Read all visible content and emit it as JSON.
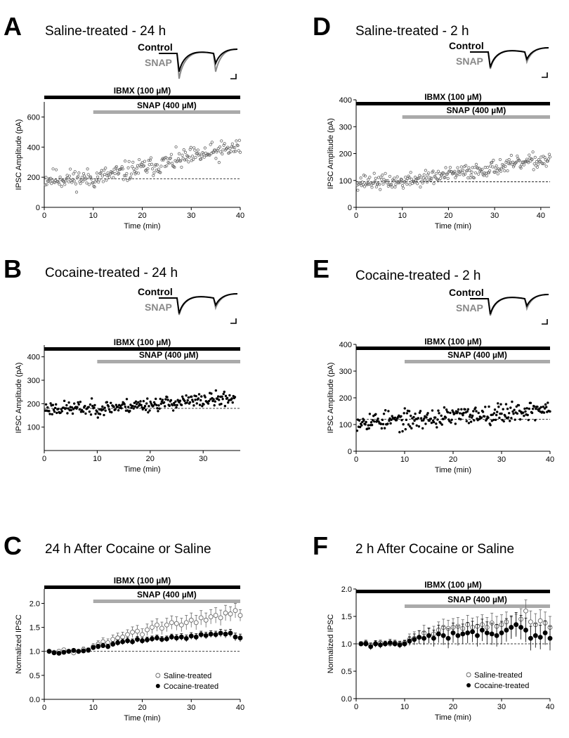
{
  "panels": [
    {
      "id": "A",
      "letter": "A",
      "title": "Saline-treated - 24 h",
      "kind": "scatter",
      "filled": false,
      "ibmx_label": "IBMX (100 µM)",
      "snap_label": "SNAP (400 µM)",
      "trace_labels": {
        "control": "Control",
        "snap": "SNAP"
      },
      "xlabel": "Time (min)",
      "ylabel": "IPSC Amplitude (pA)",
      "xlim": [
        0,
        40
      ],
      "ylim": [
        0,
        700
      ],
      "xticks": [
        0,
        10,
        20,
        30,
        40
      ],
      "yticks": [
        0,
        200,
        400,
        600
      ],
      "ibmx_range": [
        0,
        40
      ],
      "snap_range": [
        10,
        40
      ],
      "baseline": 190,
      "series": {
        "n": 250,
        "t_end": 40,
        "drug_at": 10,
        "y_before": 190,
        "y_end": 400,
        "spread": 75,
        "seed": 11
      }
    },
    {
      "id": "B",
      "letter": "B",
      "title": "Cocaine-treated - 24 h",
      "kind": "scatter",
      "filled": true,
      "ibmx_label": "IBMX (100 µM)",
      "snap_label": "SNAP (400 µM)",
      "trace_labels": {
        "control": "Control",
        "snap": "SNAP"
      },
      "xlabel": "Time (min)",
      "ylabel": "IPSC Amplitude (pA)",
      "xlim": [
        0,
        37
      ],
      "ylim": [
        0,
        450
      ],
      "xticks": [
        0,
        10,
        20,
        30
      ],
      "yticks": [
        100,
        200,
        300,
        400
      ],
      "ibmx_range": [
        0,
        37
      ],
      "snap_range": [
        10,
        37
      ],
      "baseline": 180,
      "series": {
        "n": 250,
        "t_end": 36,
        "drug_at": 10,
        "y_before": 180,
        "y_end": 225,
        "spread": 35,
        "seed": 23
      }
    },
    {
      "id": "C",
      "letter": "C",
      "title": "24 h After Cocaine or Saline",
      "kind": "errorbar",
      "ibmx_label": "IBMX (100 µM)",
      "snap_label": "SNAP (400 µM)",
      "xlabel": "Time (min)",
      "ylabel": "Normalized IPSC",
      "xlim": [
        0,
        40
      ],
      "ylim": [
        0,
        2.3
      ],
      "xticks": [
        0,
        10,
        20,
        30,
        40
      ],
      "yticks": [
        0.0,
        0.5,
        1.0,
        1.5,
        2.0
      ],
      "ibmx_range": [
        0,
        40
      ],
      "snap_range": [
        10,
        40
      ],
      "baseline": 1.0,
      "legend": {
        "position": "bottom-right"
      },
      "saline": {
        "name": "Saline-treated",
        "x": [
          1,
          2,
          3,
          4,
          5,
          6,
          7,
          8,
          9,
          10,
          11,
          12,
          13,
          14,
          15,
          16,
          17,
          18,
          19,
          20,
          21,
          22,
          23,
          24,
          25,
          26,
          27,
          28,
          29,
          30,
          31,
          32,
          33,
          34,
          35,
          36,
          37,
          38,
          39,
          40
        ],
        "y": [
          1.0,
          0.98,
          1.0,
          1.03,
          1.0,
          0.97,
          1.0,
          1.04,
          1.02,
          1.1,
          1.15,
          1.2,
          1.18,
          1.25,
          1.28,
          1.3,
          1.35,
          1.4,
          1.42,
          1.35,
          1.45,
          1.5,
          1.55,
          1.48,
          1.55,
          1.6,
          1.58,
          1.55,
          1.6,
          1.65,
          1.6,
          1.7,
          1.65,
          1.72,
          1.75,
          1.7,
          1.8,
          1.78,
          1.85,
          1.75
        ],
        "err": [
          0.03,
          0.03,
          0.04,
          0.04,
          0.04,
          0.05,
          0.04,
          0.05,
          0.05,
          0.06,
          0.07,
          0.08,
          0.08,
          0.09,
          0.1,
          0.1,
          0.1,
          0.11,
          0.12,
          0.12,
          0.12,
          0.13,
          0.13,
          0.13,
          0.14,
          0.14,
          0.14,
          0.14,
          0.15,
          0.15,
          0.15,
          0.15,
          0.15,
          0.15,
          0.16,
          0.16,
          0.16,
          0.15,
          0.15,
          0.12
        ]
      },
      "cocaine": {
        "name": "Cocaine-treated",
        "x": [
          1,
          2,
          3,
          4,
          5,
          6,
          7,
          8,
          9,
          10,
          11,
          12,
          13,
          14,
          15,
          16,
          17,
          18,
          19,
          20,
          21,
          22,
          23,
          24,
          25,
          26,
          27,
          28,
          29,
          30,
          31,
          32,
          33,
          34,
          35,
          36,
          37,
          38,
          39,
          40
        ],
        "y": [
          1.0,
          0.97,
          0.96,
          0.98,
          1.0,
          1.02,
          1.0,
          1.01,
          1.03,
          1.08,
          1.1,
          1.12,
          1.1,
          1.15,
          1.18,
          1.2,
          1.22,
          1.2,
          1.25,
          1.22,
          1.24,
          1.26,
          1.28,
          1.25,
          1.26,
          1.3,
          1.28,
          1.3,
          1.27,
          1.32,
          1.3,
          1.35,
          1.33,
          1.36,
          1.35,
          1.38,
          1.36,
          1.38,
          1.3,
          1.28
        ],
        "err": [
          0.02,
          0.02,
          0.03,
          0.03,
          0.03,
          0.03,
          0.03,
          0.03,
          0.04,
          0.04,
          0.05,
          0.05,
          0.05,
          0.05,
          0.06,
          0.06,
          0.06,
          0.06,
          0.06,
          0.06,
          0.06,
          0.06,
          0.06,
          0.06,
          0.06,
          0.06,
          0.07,
          0.07,
          0.07,
          0.07,
          0.07,
          0.07,
          0.07,
          0.07,
          0.07,
          0.08,
          0.08,
          0.08,
          0.08,
          0.08
        ]
      }
    },
    {
      "id": "D",
      "letter": "D",
      "title": "Saline-treated - 2 h",
      "kind": "scatter",
      "filled": false,
      "ibmx_label": "IBMX (100 µM)",
      "snap_label": "SNAP (400 µM)",
      "trace_labels": {
        "control": "Control",
        "snap": "SNAP"
      },
      "xlabel": "Time (min)",
      "ylabel": "IPSC Amplitude (pA)",
      "xlim": [
        0,
        42
      ],
      "ylim": [
        0,
        400
      ],
      "xticks": [
        0,
        10,
        20,
        30,
        40
      ],
      "yticks": [
        0,
        100,
        200,
        300,
        400
      ],
      "ibmx_range": [
        0,
        42
      ],
      "snap_range": [
        10,
        42
      ],
      "baseline": 95,
      "series": {
        "n": 260,
        "t_end": 42,
        "drug_at": 10,
        "y_before": 95,
        "y_end": 180,
        "spread": 32,
        "seed": 37
      }
    },
    {
      "id": "E",
      "letter": "E",
      "title": "Cocaine-treated - 2 h",
      "kind": "scatter",
      "filled": true,
      "ibmx_label": "IBMX (100 µM)",
      "snap_label": "SNAP (400 µM)",
      "trace_labels": {
        "control": "Control",
        "snap": "SNAP"
      },
      "xlabel": "Time (min)",
      "ylabel": "IPSC Amplitude (pA)",
      "xlim": [
        0,
        40
      ],
      "ylim": [
        0,
        400
      ],
      "xticks": [
        0,
        10,
        20,
        30,
        40
      ],
      "yticks": [
        0,
        100,
        200,
        300,
        400
      ],
      "ibmx_range": [
        0,
        40
      ],
      "snap_range": [
        10,
        40
      ],
      "baseline": 120,
      "series": {
        "n": 260,
        "t_end": 40,
        "drug_at": 10,
        "y_before": 115,
        "y_end": 160,
        "spread": 42,
        "seed": 53
      }
    },
    {
      "id": "F",
      "letter": "F",
      "title": "2 h After Cocaine or Saline",
      "kind": "errorbar",
      "ibmx_label": "IBMX (100 µM)",
      "snap_label": "SNAP (400 µM)",
      "xlabel": "Time (min)",
      "ylabel": "Normalized IPSC",
      "xlim": [
        0,
        40
      ],
      "ylim": [
        0,
        2.0
      ],
      "xticks": [
        0,
        10,
        20,
        30,
        40
      ],
      "yticks": [
        0.0,
        0.5,
        1.0,
        1.5,
        2.0
      ],
      "ibmx_range": [
        0,
        40
      ],
      "snap_range": [
        10,
        40
      ],
      "baseline": 1.0,
      "legend": {
        "position": "bottom-right"
      },
      "saline": {
        "name": "Saline-treated",
        "x": [
          1,
          2,
          3,
          4,
          5,
          6,
          7,
          8,
          9,
          10,
          11,
          12,
          13,
          14,
          15,
          16,
          17,
          18,
          19,
          20,
          21,
          22,
          23,
          24,
          25,
          26,
          27,
          28,
          29,
          30,
          31,
          32,
          33,
          34,
          35,
          36,
          37,
          38,
          39,
          40
        ],
        "y": [
          1.0,
          1.02,
          0.98,
          1.0,
          1.02,
          1.0,
          1.0,
          1.02,
          1.0,
          1.02,
          1.08,
          1.1,
          1.12,
          1.2,
          1.15,
          1.18,
          1.25,
          1.3,
          1.28,
          1.3,
          1.32,
          1.28,
          1.35,
          1.3,
          1.32,
          1.35,
          1.3,
          1.38,
          1.32,
          1.35,
          1.4,
          1.3,
          1.35,
          1.45,
          1.6,
          1.4,
          1.35,
          1.42,
          1.38,
          1.3
        ],
        "err": [
          0.04,
          0.05,
          0.04,
          0.05,
          0.05,
          0.04,
          0.05,
          0.05,
          0.05,
          0.05,
          0.1,
          0.12,
          0.12,
          0.14,
          0.13,
          0.14,
          0.15,
          0.15,
          0.15,
          0.16,
          0.16,
          0.16,
          0.17,
          0.17,
          0.17,
          0.18,
          0.18,
          0.18,
          0.18,
          0.18,
          0.18,
          0.19,
          0.19,
          0.19,
          0.2,
          0.2,
          0.2,
          0.2,
          0.2,
          0.2
        ]
      },
      "cocaine": {
        "name": "Cocaine-treated",
        "x": [
          1,
          2,
          3,
          4,
          5,
          6,
          7,
          8,
          9,
          10,
          11,
          12,
          13,
          14,
          15,
          16,
          17,
          18,
          19,
          20,
          21,
          22,
          23,
          24,
          25,
          26,
          27,
          28,
          29,
          30,
          31,
          32,
          33,
          34,
          35,
          36,
          37,
          38,
          39,
          40
        ],
        "y": [
          1.0,
          1.0,
          0.95,
          1.0,
          0.98,
          1.0,
          1.02,
          1.0,
          0.98,
          1.0,
          1.05,
          1.08,
          1.12,
          1.1,
          1.15,
          1.1,
          1.18,
          1.15,
          1.1,
          1.2,
          1.15,
          1.18,
          1.2,
          1.22,
          1.15,
          1.25,
          1.2,
          1.18,
          1.15,
          1.2,
          1.25,
          1.3,
          1.35,
          1.3,
          1.25,
          1.1,
          1.15,
          1.12,
          1.2,
          1.1
        ],
        "err": [
          0.04,
          0.05,
          0.06,
          0.06,
          0.06,
          0.05,
          0.06,
          0.05,
          0.06,
          0.06,
          0.08,
          0.1,
          0.12,
          0.12,
          0.14,
          0.15,
          0.16,
          0.17,
          0.18,
          0.18,
          0.18,
          0.18,
          0.19,
          0.19,
          0.2,
          0.2,
          0.2,
          0.2,
          0.2,
          0.21,
          0.21,
          0.21,
          0.22,
          0.22,
          0.22,
          0.22,
          0.22,
          0.22,
          0.22,
          0.22
        ]
      }
    }
  ]
}
